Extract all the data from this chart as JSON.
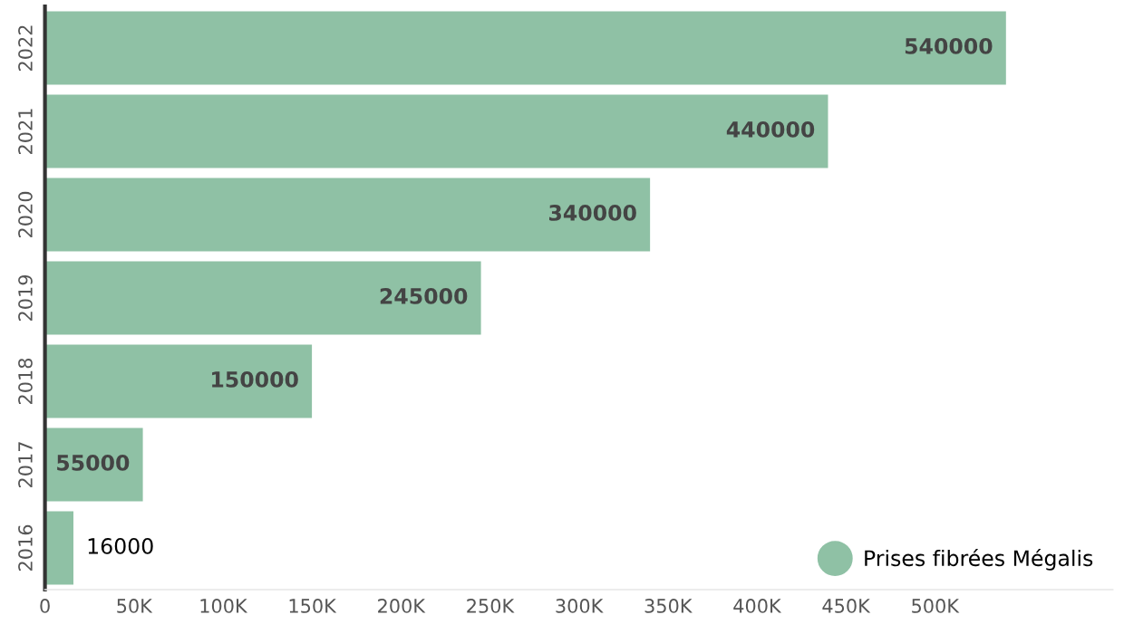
{
  "chart_data": {
    "type": "bar",
    "orientation": "horizontal",
    "categories": [
      "2022",
      "2021",
      "2020",
      "2019",
      "2018",
      "2017",
      "2016"
    ],
    "series": [
      {
        "name": "Prises fibrées Mégalis",
        "color": "#8fc1a5",
        "values": [
          540000,
          440000,
          340000,
          245000,
          150000,
          55000,
          16000
        ]
      }
    ],
    "xlim": [
      0,
      600000
    ],
    "xticks": [
      0,
      {
        "value": 50000,
        "label": "50K"
      },
      {
        "value": 100000,
        "label": "100K"
      },
      {
        "value": 150000,
        "label": "150K"
      },
      {
        "value": 200000,
        "label": "200K"
      },
      {
        "value": 250000,
        "label": "250K"
      },
      {
        "value": 300000,
        "label": "300K"
      },
      {
        "value": 350000,
        "label": "350K"
      },
      {
        "value": 400000,
        "label": "400K"
      },
      {
        "value": 450000,
        "label": "450K"
      },
      {
        "value": 500000,
        "label": "500K"
      }
    ],
    "data_labels": true,
    "legend": "bottom right",
    "grid": false
  }
}
